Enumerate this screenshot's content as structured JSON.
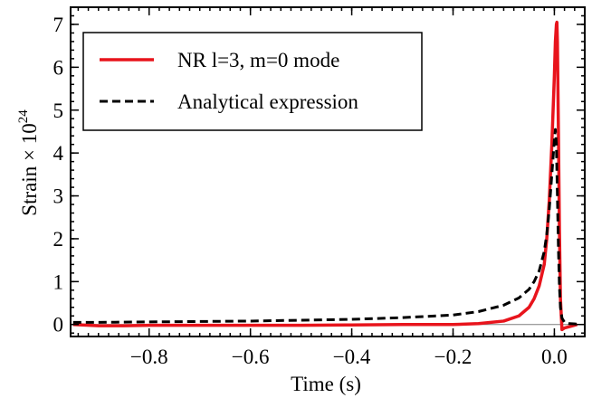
{
  "chart_data": {
    "type": "line",
    "title": "",
    "xlabel": "Time (s)",
    "ylabel": "Strain × 10",
    "ylabel_exponent": "24",
    "xlim": [
      -0.955,
      0.06
    ],
    "ylim": [
      -0.28,
      7.4
    ],
    "x_ticks": [
      -0.8,
      -0.6,
      -0.4,
      -0.2,
      0.0
    ],
    "x_tick_labels": [
      "−0.8",
      "−0.6",
      "−0.4",
      "−0.2",
      "0.0"
    ],
    "y_ticks": [
      0,
      1,
      2,
      3,
      4,
      5,
      6,
      7
    ],
    "y_tick_labels": [
      "0",
      "1",
      "2",
      "3",
      "4",
      "5",
      "6",
      "7"
    ],
    "grid": false,
    "legend_position": "top-left",
    "series": [
      {
        "name": "NR l=3, m=0 mode",
        "color": "#e8141c",
        "style": "solid",
        "x": [
          -0.95,
          -0.9,
          -0.85,
          -0.8,
          -0.7,
          -0.6,
          -0.5,
          -0.4,
          -0.3,
          -0.2,
          -0.15,
          -0.1,
          -0.07,
          -0.05,
          -0.04,
          -0.03,
          -0.02,
          -0.015,
          -0.01,
          -0.005,
          0.0,
          0.002,
          0.004,
          0.005,
          0.006,
          0.008,
          0.01,
          0.012,
          0.015,
          0.02,
          0.03,
          0.045
        ],
        "y": [
          0.0,
          -0.03,
          -0.03,
          -0.02,
          -0.02,
          -0.02,
          -0.02,
          -0.01,
          0.0,
          0.0,
          0.02,
          0.08,
          0.2,
          0.4,
          0.6,
          0.9,
          1.4,
          2.0,
          2.9,
          4.2,
          5.8,
          6.6,
          7.0,
          7.05,
          6.6,
          4.5,
          2.2,
          0.6,
          -0.12,
          -0.08,
          -0.05,
          0.0
        ]
      },
      {
        "name": "Analytical expression",
        "color": "#000000",
        "style": "dashed",
        "x": [
          -0.95,
          -0.9,
          -0.8,
          -0.7,
          -0.6,
          -0.5,
          -0.4,
          -0.3,
          -0.2,
          -0.15,
          -0.1,
          -0.07,
          -0.05,
          -0.04,
          -0.03,
          -0.02,
          -0.015,
          -0.01,
          -0.005,
          0.0,
          0.002,
          0.004,
          0.006,
          0.008,
          0.01,
          0.012,
          0.015,
          0.02,
          0.03,
          0.045
        ],
        "y": [
          0.05,
          0.05,
          0.06,
          0.07,
          0.08,
          0.1,
          0.12,
          0.16,
          0.22,
          0.3,
          0.45,
          0.62,
          0.82,
          1.0,
          1.25,
          1.7,
          2.1,
          2.7,
          3.5,
          4.3,
          4.55,
          4.2,
          3.0,
          1.8,
          0.9,
          0.4,
          0.15,
          0.05,
          0.02,
          0.01
        ]
      }
    ]
  }
}
